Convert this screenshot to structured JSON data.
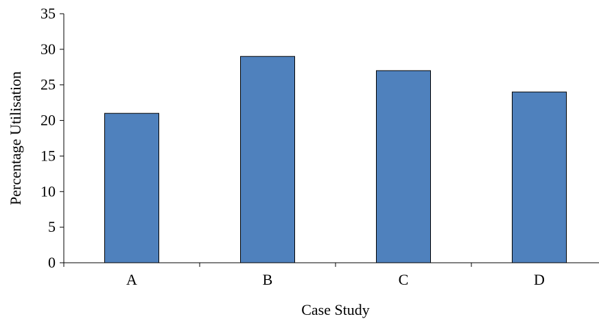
{
  "chart_data": {
    "type": "bar",
    "title": "",
    "xlabel": "Case Study",
    "ylabel": "Percentage Utilisation",
    "categories": [
      "A",
      "B",
      "C",
      "D"
    ],
    "values": [
      21,
      29,
      27,
      24
    ],
    "ylim": [
      0,
      35
    ],
    "yticks": [
      0,
      5,
      10,
      15,
      20,
      25,
      30,
      35
    ],
    "grid": false,
    "legend": "none",
    "bar_color": "#4f81bd",
    "bar_edge_color": "#000000"
  }
}
